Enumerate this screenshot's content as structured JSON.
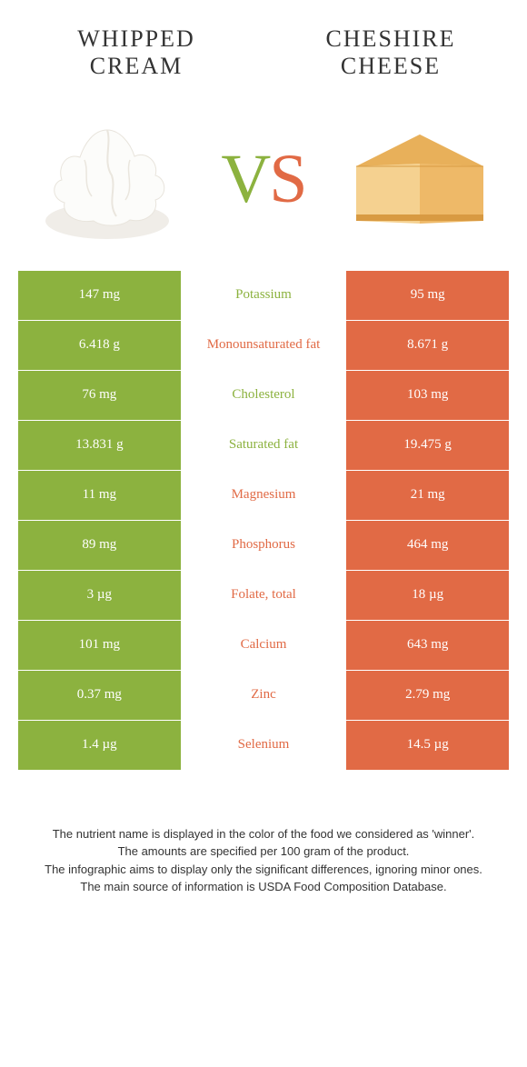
{
  "colors": {
    "green": "#8cb23f",
    "orange": "#e16a45",
    "text": "#333333",
    "bg": "#ffffff"
  },
  "left": {
    "title": "WHIPPED CREAM"
  },
  "right": {
    "title": "CHESHIRE CHEESE"
  },
  "vs": {
    "v": "V",
    "s": "S"
  },
  "rows": [
    {
      "left": "147 mg",
      "label": "Potassium",
      "right": "95 mg",
      "winner": "green"
    },
    {
      "left": "6.418 g",
      "label": "Monounsaturated fat",
      "right": "8.671 g",
      "winner": "orange"
    },
    {
      "left": "76 mg",
      "label": "Cholesterol",
      "right": "103 mg",
      "winner": "green"
    },
    {
      "left": "13.831 g",
      "label": "Saturated fat",
      "right": "19.475 g",
      "winner": "green"
    },
    {
      "left": "11 mg",
      "label": "Magnesium",
      "right": "21 mg",
      "winner": "orange"
    },
    {
      "left": "89 mg",
      "label": "Phosphorus",
      "right": "464 mg",
      "winner": "orange"
    },
    {
      "left": "3 µg",
      "label": "Folate, total",
      "right": "18 µg",
      "winner": "orange"
    },
    {
      "left": "101 mg",
      "label": "Calcium",
      "right": "643 mg",
      "winner": "orange"
    },
    {
      "left": "0.37 mg",
      "label": "Zinc",
      "right": "2.79 mg",
      "winner": "orange"
    },
    {
      "left": "1.4 µg",
      "label": "Selenium",
      "right": "14.5 µg",
      "winner": "orange"
    }
  ],
  "footer": {
    "l1": "The nutrient name is displayed in the color of the food we considered as 'winner'.",
    "l2": "The amounts are specified per 100 gram of the product.",
    "l3": "The infographic aims to display only the significant differences, ignoring minor ones.",
    "l4": "The main source of information is USDA Food Composition Database."
  }
}
